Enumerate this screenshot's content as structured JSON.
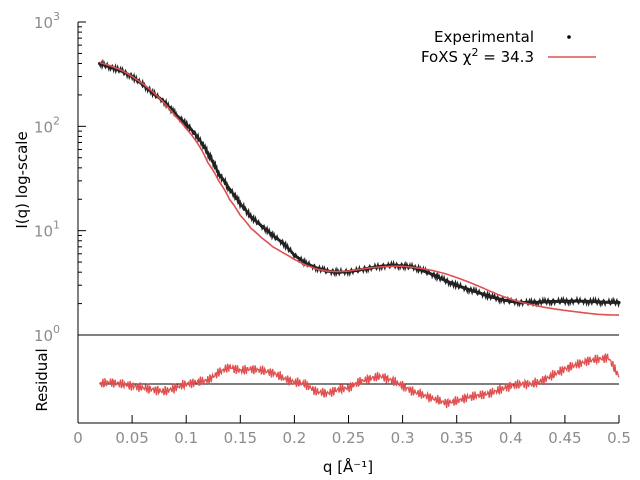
{
  "chart_data": [
    {
      "type": "scatter",
      "title": "",
      "xlabel": "q [Å⁻¹]",
      "ylabel": "I(q) log-scale",
      "xlim": [
        0,
        0.5
      ],
      "ylim": [
        1,
        1000
      ],
      "yscale": "log",
      "grid": false,
      "legend_position": "top-right",
      "x_tick_labels": [
        "0",
        "0.05",
        "0.1",
        "0.15",
        "0.2",
        "0.25",
        "0.3",
        "0.35",
        "0.4",
        "0.45",
        "0.5"
      ],
      "y_tick_labels": [
        {
          "value": 1,
          "base": "10",
          "exp": "0"
        },
        {
          "value": 10,
          "base": "10",
          "exp": "1"
        },
        {
          "value": 100,
          "base": "10",
          "exp": "2"
        },
        {
          "value": 1000,
          "base": "10",
          "exp": "3"
        }
      ],
      "legend": [
        {
          "name": "Experimental",
          "color": "#000000",
          "marker": "dot"
        },
        {
          "name": "FoXS χ² = 34.3",
          "label_main": "FoXS χ",
          "label_sup": "2",
          "label_tail": " = 34.3",
          "color": "#e05050",
          "marker": "line"
        }
      ],
      "series": [
        {
          "name": "Experimental",
          "color": "#222222",
          "x": [
            0.02,
            0.03,
            0.04,
            0.05,
            0.06,
            0.07,
            0.08,
            0.09,
            0.1,
            0.11,
            0.12,
            0.13,
            0.14,
            0.15,
            0.16,
            0.17,
            0.18,
            0.19,
            0.2,
            0.21,
            0.22,
            0.23,
            0.24,
            0.25,
            0.26,
            0.27,
            0.28,
            0.29,
            0.3,
            0.31,
            0.32,
            0.33,
            0.34,
            0.35,
            0.36,
            0.37,
            0.38,
            0.39,
            0.4,
            0.41,
            0.42,
            0.43,
            0.44,
            0.45,
            0.46,
            0.47,
            0.48,
            0.49,
            0.5
          ],
          "y": [
            400,
            370,
            340,
            300,
            250,
            205,
            170,
            130,
            105,
            80,
            55,
            35,
            25,
            18,
            13.5,
            11,
            9,
            7.5,
            5.8,
            4.9,
            4.4,
            4.1,
            4.0,
            4.05,
            4.2,
            4.4,
            4.55,
            4.65,
            4.6,
            4.45,
            4.1,
            3.7,
            3.3,
            3.0,
            2.75,
            2.55,
            2.35,
            2.2,
            2.1,
            2.05,
            2.05,
            2.08,
            2.1,
            2.1,
            2.12,
            2.1,
            2.08,
            2.06,
            2.05
          ]
        },
        {
          "name": "FoXS χ² = 34.3",
          "color": "#e05050",
          "x": [
            0.02,
            0.03,
            0.04,
            0.05,
            0.06,
            0.07,
            0.08,
            0.09,
            0.1,
            0.11,
            0.12,
            0.13,
            0.14,
            0.15,
            0.16,
            0.17,
            0.18,
            0.19,
            0.2,
            0.21,
            0.22,
            0.23,
            0.24,
            0.25,
            0.26,
            0.27,
            0.28,
            0.29,
            0.3,
            0.31,
            0.32,
            0.33,
            0.34,
            0.35,
            0.36,
            0.37,
            0.38,
            0.39,
            0.4,
            0.41,
            0.42,
            0.43,
            0.44,
            0.45,
            0.46,
            0.47,
            0.48,
            0.49,
            0.5
          ],
          "y": [
            410,
            380,
            345,
            300,
            255,
            210,
            165,
            125,
            95,
            70,
            45,
            30,
            20,
            14,
            10.5,
            8.5,
            7,
            6.1,
            5.3,
            4.7,
            4.3,
            4.1,
            4.05,
            4.1,
            4.25,
            4.4,
            4.5,
            4.55,
            4.55,
            4.45,
            4.3,
            4.1,
            3.85,
            3.55,
            3.25,
            2.95,
            2.65,
            2.4,
            2.2,
            2.05,
            1.95,
            1.85,
            1.78,
            1.72,
            1.67,
            1.62,
            1.58,
            1.56,
            1.55
          ]
        }
      ]
    },
    {
      "type": "line",
      "ylabel": "Residual",
      "xlim": [
        0,
        0.5
      ],
      "ylim": [
        -1,
        1
      ],
      "color": "#e05050",
      "zero_line_color": "#000000",
      "series": [
        {
          "name": "Residual",
          "x": [
            0.02,
            0.03,
            0.04,
            0.05,
            0.06,
            0.07,
            0.08,
            0.09,
            0.1,
            0.11,
            0.12,
            0.13,
            0.14,
            0.15,
            0.16,
            0.17,
            0.18,
            0.19,
            0.2,
            0.21,
            0.22,
            0.23,
            0.24,
            0.25,
            0.26,
            0.27,
            0.28,
            0.29,
            0.3,
            0.31,
            0.32,
            0.33,
            0.34,
            0.35,
            0.36,
            0.37,
            0.38,
            0.39,
            0.4,
            0.41,
            0.42,
            0.43,
            0.44,
            0.45,
            0.46,
            0.47,
            0.48,
            0.49,
            0.5
          ],
          "y": [
            0.0,
            0.05,
            0.0,
            -0.05,
            -0.1,
            -0.15,
            -0.2,
            -0.1,
            0.0,
            0.05,
            0.1,
            0.3,
            0.45,
            0.35,
            0.4,
            0.35,
            0.3,
            0.15,
            0.05,
            0.0,
            -0.2,
            -0.25,
            -0.15,
            -0.1,
            0.05,
            0.15,
            0.2,
            0.1,
            -0.05,
            -0.2,
            -0.3,
            -0.4,
            -0.5,
            -0.45,
            -0.35,
            -0.3,
            -0.25,
            -0.15,
            -0.05,
            0.0,
            0.0,
            0.1,
            0.25,
            0.4,
            0.5,
            0.6,
            0.65,
            0.7,
            0.2
          ]
        }
      ]
    }
  ]
}
